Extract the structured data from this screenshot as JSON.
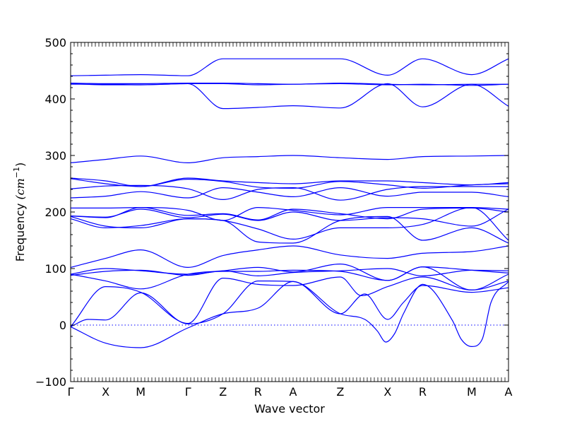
{
  "chart_data": {
    "type": "line",
    "title": "",
    "xlabel": "Wave vector",
    "ylabel_text": "Frequency ",
    "ylabel_unit_base": "(cm",
    "ylabel_unit_sup": "−1",
    "ylabel_unit_close": ")",
    "ylim": [
      -100,
      500
    ],
    "yticks": [
      -100,
      0,
      100,
      200,
      300,
      400,
      500
    ],
    "ytick_labels": [
      "−100",
      "0",
      "100",
      "200",
      "300",
      "400",
      "500"
    ],
    "xlim": [
      0,
      12.5
    ],
    "high_symmetry_points": [
      {
        "label": "Γ",
        "x": 0
      },
      {
        "label": "X",
        "x": 1
      },
      {
        "label": "M",
        "x": 2
      },
      {
        "label": "Γ",
        "x": 3.35
      },
      {
        "label": "Z",
        "x": 4.35
      },
      {
        "label": "R",
        "x": 5.35
      },
      {
        "label": "A",
        "x": 6.35
      },
      {
        "label": "Z",
        "x": 7.7
      },
      {
        "label": "X",
        "x": 9.05
      },
      {
        "label": "R",
        "x": 10.05
      },
      {
        "label": "M",
        "x": 11.45
      },
      {
        "label": "A",
        "x": 12.5
      }
    ],
    "grid": false,
    "zero_line": true,
    "colors": {
      "bands": "#0000ff",
      "zero_line": "#0000ff",
      "axes": "#000000"
    },
    "series": [
      {
        "x": [
          0,
          1,
          2,
          3.35,
          4.35,
          5.35,
          6.35,
          7.7,
          8.4,
          9.05,
          9.5,
          10.05,
          11.45,
          12.5
        ],
        "y": [
          -3,
          -32,
          -40,
          -5,
          20,
          30,
          77,
          20,
          55,
          10,
          40,
          70,
          58,
          66
        ]
      },
      {
        "x": [
          0,
          0.5,
          1,
          2,
          3.35,
          4.35,
          5.35,
          6.35,
          7.7,
          8.4,
          8.75,
          9,
          9.25,
          9.5,
          10.05,
          10.9,
          11.15,
          11.45,
          11.75,
          12,
          12.5
        ],
        "y": [
          -3,
          10,
          9,
          57,
          2,
          20,
          78,
          77,
          20,
          10,
          -10,
          -30,
          -15,
          20,
          72,
          8,
          -25,
          -38,
          -25,
          40,
          77
        ]
      },
      {
        "x": [
          0,
          1,
          2,
          3.35,
          4.35,
          5.35,
          6.35,
          7.7,
          8.3,
          9.05,
          10.05,
          11.45,
          12.5
        ],
        "y": [
          -3,
          68,
          58,
          3,
          83,
          72,
          70,
          85,
          52,
          68,
          85,
          62,
          78
        ]
      },
      {
        "x": [
          0,
          1,
          2,
          3.35,
          4.35,
          5.35,
          6.35,
          7.7,
          9.05,
          10.05,
          11.45,
          12.5
        ],
        "y": [
          90,
          78,
          64,
          90,
          95,
          95,
          97,
          95,
          79,
          103,
          62,
          90
        ]
      },
      {
        "x": [
          0,
          1,
          2,
          3.35,
          4.35,
          5.35,
          6.35,
          7.7,
          9.05,
          10.05,
          11.45,
          12.5
        ],
        "y": [
          90,
          100,
          96,
          90,
          96,
          102,
          94,
          108,
          79,
          103,
          97,
          92
        ]
      },
      {
        "x": [
          0,
          1,
          2,
          3.35,
          4.35,
          5.35,
          6.35,
          7.7,
          9.05,
          10.05,
          11.45,
          12.5
        ],
        "y": [
          88,
          95,
          97,
          88,
          96,
          87,
          93,
          96,
          100,
          87,
          97,
          96
        ]
      },
      {
        "x": [
          0,
          1,
          2,
          3.35,
          4.35,
          5.35,
          6.35,
          7.7,
          9.05,
          10.05,
          11.45,
          12.5
        ],
        "y": [
          102,
          118,
          133,
          102,
          123,
          133,
          140,
          124,
          118,
          127,
          130,
          140
        ]
      },
      {
        "x": [
          0,
          1,
          2,
          3.35,
          4.35,
          5.35,
          6.35,
          7.7,
          9.05,
          10.05,
          11.45,
          12.5
        ],
        "y": [
          188,
          172,
          176,
          188,
          185,
          147,
          145,
          185,
          192,
          150,
          172,
          145
        ]
      },
      {
        "x": [
          0,
          1,
          2,
          3.35,
          4.35,
          5.35,
          6.35,
          7.7,
          9.05,
          10.05,
          11.45,
          12.5
        ],
        "y": [
          192,
          175,
          172,
          188,
          185,
          170,
          152,
          172,
          172,
          178,
          208,
          150
        ]
      },
      {
        "x": [
          0,
          1,
          2,
          3.35,
          4.35,
          5.35,
          6.35,
          7.7,
          9.05,
          10.05,
          11.45,
          12.5
        ],
        "y": [
          193,
          191,
          205,
          190,
          196,
          185,
          200,
          185,
          190,
          188,
          175,
          205
        ]
      },
      {
        "x": [
          0,
          1,
          2,
          3.35,
          4.35,
          5.35,
          6.35,
          7.7,
          9.05,
          10.05,
          11.45,
          12.5
        ],
        "y": [
          193,
          190,
          208,
          194,
          197,
          186,
          205,
          197,
          188,
          205,
          207,
          200
        ]
      },
      {
        "x": [
          0,
          1,
          2,
          3.35,
          4.35,
          5.35,
          6.35,
          7.7,
          9.05,
          10.05,
          11.45,
          12.5
        ],
        "y": [
          207,
          207,
          208,
          203,
          185,
          208,
          203,
          195,
          208,
          208,
          208,
          205
        ]
      },
      {
        "x": [
          0,
          1,
          2,
          3.35,
          4.35,
          5.35,
          6.35,
          7.7,
          9.05,
          10.05,
          11.45,
          12.5
        ],
        "y": [
          225,
          228,
          236,
          225,
          243,
          235,
          227,
          243,
          228,
          235,
          235,
          227
        ]
      },
      {
        "x": [
          0,
          1,
          2,
          3.35,
          4.35,
          5.35,
          6.35,
          7.7,
          9.05,
          10.05,
          11.45,
          12.5
        ],
        "y": [
          241,
          246,
          247,
          241,
          222,
          240,
          243,
          221,
          240,
          245,
          245,
          245
        ]
      },
      {
        "x": [
          0,
          1,
          2,
          3.35,
          4.35,
          5.35,
          6.35,
          7.7,
          9.05,
          10.05,
          11.45,
          12.5
        ],
        "y": [
          259,
          250,
          245,
          258,
          254,
          244,
          242,
          254,
          248,
          242,
          248,
          250
        ]
      },
      {
        "x": [
          0,
          1,
          2,
          3.35,
          4.35,
          5.35,
          6.35,
          7.7,
          9.05,
          10.05,
          11.45,
          12.5
        ],
        "y": [
          260,
          255,
          245,
          260,
          255,
          252,
          250,
          255,
          255,
          252,
          248,
          252
        ]
      },
      {
        "x": [
          0,
          1,
          2,
          3.35,
          4.35,
          5.35,
          6.35,
          7.7,
          9.05,
          10.05,
          11.45,
          12.5
        ],
        "y": [
          287,
          293,
          299,
          287,
          296,
          298,
          300,
          296,
          293,
          298,
          299,
          300
        ]
      },
      {
        "x": [
          0,
          1,
          2,
          3.35,
          4.35,
          5.35,
          6.35,
          7.7,
          9.05,
          10.05,
          11.45,
          12.5
        ],
        "y": [
          426,
          426,
          425,
          427,
          383,
          385,
          388,
          384,
          427,
          386,
          426,
          387
        ]
      },
      {
        "x": [
          0,
          1,
          2,
          3.35,
          4.35,
          5.35,
          6.35,
          7.7,
          9.05,
          10.05,
          11.45,
          12.5
        ],
        "y": [
          427,
          425,
          425,
          427,
          427,
          425,
          426,
          427,
          425,
          426,
          424,
          426
        ]
      },
      {
        "x": [
          0,
          1,
          2,
          3.35,
          4.35,
          5.35,
          6.35,
          7.7,
          9.05,
          10.05,
          11.45,
          12.5
        ],
        "y": [
          428,
          427,
          427,
          428,
          428,
          427,
          426,
          428,
          426,
          425,
          426,
          426
        ]
      },
      {
        "x": [
          0,
          1,
          2,
          3.35,
          4.35,
          5.35,
          6.35,
          7.7,
          9.05,
          10.05,
          11.45,
          12.5
        ],
        "y": [
          441,
          442,
          443,
          441,
          471,
          471,
          471,
          471,
          442,
          471,
          443,
          471
        ]
      }
    ]
  }
}
